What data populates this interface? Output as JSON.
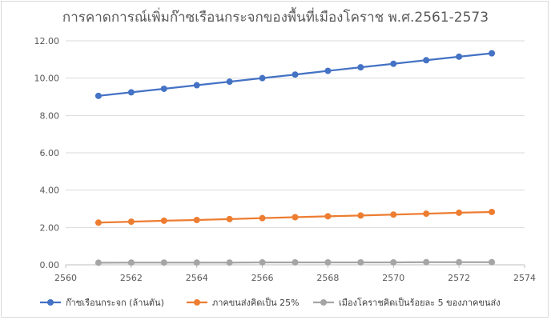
{
  "chart_data": {
    "type": "line",
    "title": "การคาดการณ์เพิ่มก๊าซเรือนกระจกของพื้นที่เมืองโคราช พ.ศ.2561-2573",
    "xlabel": "",
    "ylabel": "",
    "xlim": [
      2560,
      2574
    ],
    "ylim": [
      0,
      12
    ],
    "x_ticks": [
      2560,
      2562,
      2564,
      2566,
      2568,
      2570,
      2572,
      2574
    ],
    "y_ticks": [
      "0.00",
      "2.00",
      "4.00",
      "6.00",
      "8.00",
      "10.00",
      "12.00"
    ],
    "grid": "horizontal",
    "legend": "bottom",
    "x": [
      2561,
      2562,
      2563,
      2564,
      2565,
      2566,
      2567,
      2568,
      2569,
      2570,
      2571,
      2572,
      2573
    ],
    "series": [
      {
        "name": "ก๊าซเรือนกระจก (ล้านตัน)",
        "color": "#4472c4",
        "values": [
          9.05,
          9.24,
          9.43,
          9.62,
          9.81,
          10.0,
          10.19,
          10.39,
          10.58,
          10.77,
          10.96,
          11.15,
          11.33
        ]
      },
      {
        "name": "ภาคขนส่งคิดเป็น 25%",
        "color": "#ed7d31",
        "values": [
          2.26,
          2.31,
          2.36,
          2.4,
          2.45,
          2.5,
          2.55,
          2.6,
          2.64,
          2.69,
          2.74,
          2.79,
          2.83
        ]
      },
      {
        "name": "เมืองโคราชคิดเป็นร้อยละ 5 ของภาคขนส่ง",
        "color": "#a5a5a5",
        "values": [
          0.11,
          0.12,
          0.12,
          0.12,
          0.12,
          0.13,
          0.13,
          0.13,
          0.13,
          0.13,
          0.14,
          0.14,
          0.14
        ]
      }
    ]
  }
}
